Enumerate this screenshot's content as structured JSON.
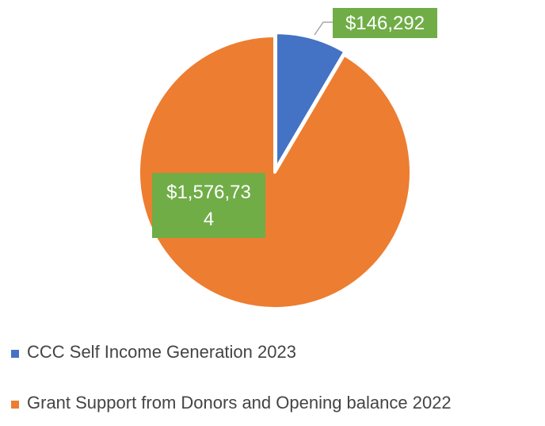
{
  "chart_data": {
    "type": "pie",
    "title": "",
    "slices": [
      {
        "name": "CCC Self Income Generation 2023",
        "value": 146292,
        "label_lines": [
          "$146,292"
        ],
        "color": "#4472C4"
      },
      {
        "name": "Grant Support from Donors and Opening balance 2022",
        "value": 1576734,
        "label_lines": [
          "$1,576,73",
          "4"
        ],
        "color": "#ED7D31"
      }
    ],
    "start_angle_deg": 0,
    "direction": "clockwise",
    "data_label_bg": "#70AD47",
    "slice_border": "#ffffff",
    "legend_position": "bottom",
    "legend_text_color": "#444444"
  }
}
